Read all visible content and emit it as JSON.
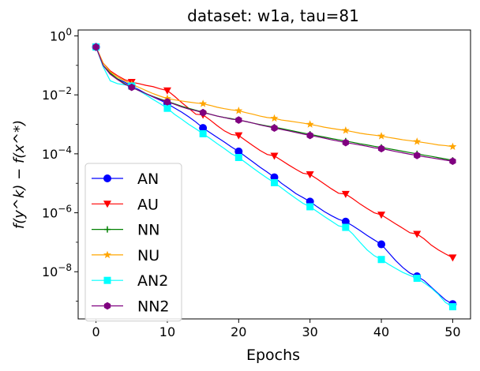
{
  "chart_data": {
    "type": "line",
    "title": "dataset: w1a, tau=81",
    "xlabel": "Epochs",
    "ylabel": "f(y^k) − f(x^*)",
    "yscale": "log",
    "xlim": [
      -2.5,
      52.5
    ],
    "ylim_log10": [
      -9.6,
      0.2
    ],
    "xticks": [
      0,
      10,
      20,
      30,
      40,
      50
    ],
    "xtick_labels": [
      "0",
      "10",
      "20",
      "30",
      "40",
      "50"
    ],
    "yticks_log10": [
      0,
      -2,
      -4,
      -6,
      -8
    ],
    "ytick_labels": [
      "10",
      "10",
      "10",
      "10",
      "10"
    ],
    "ytick_exponents": [
      "0",
      "−2",
      "−4",
      "−6",
      "−8"
    ],
    "grid": false,
    "legend_position": "lower-left",
    "series": [
      {
        "name": "AN",
        "color": "#0000ff",
        "marker": "circle",
        "x": [
          0,
          1,
          2,
          3,
          4,
          5,
          6,
          7,
          8,
          9,
          10,
          11,
          12,
          13,
          14,
          15,
          16,
          17,
          18,
          19,
          20,
          21,
          22,
          23,
          24,
          25,
          26,
          27,
          28,
          29,
          30,
          31,
          32,
          33,
          34,
          35,
          36,
          37,
          38,
          39,
          40,
          41,
          42,
          43,
          44,
          45,
          46,
          47,
          48,
          49,
          50
        ],
        "y": [
          0.42,
          0.1,
          0.05,
          0.035,
          0.027,
          0.02,
          0.015,
          0.011,
          0.0085,
          0.0066,
          0.005,
          0.0036,
          0.0026,
          0.0018,
          0.0012,
          0.00075,
          0.00052,
          0.00036,
          0.00025,
          0.00017,
          0.00012,
          8e-05,
          5.3e-05,
          3.5e-05,
          2.4e-05,
          1.6e-05,
          1e-05,
          6.8e-06,
          4.5e-06,
          3.3e-06,
          2.4e-06,
          1.6e-06,
          1.1e-06,
          8e-07,
          6e-07,
          5e-07,
          3.6e-07,
          2.5e-07,
          1.7e-07,
          1.2e-07,
          8.5e-08,
          4.5e-08,
          2.4e-08,
          1.4e-08,
          9e-09,
          7e-09,
          5e-09,
          3e-09,
          1.8e-09,
          1.1e-09,
          8e-10
        ]
      },
      {
        "name": "AU",
        "color": "#ff0000",
        "marker": "triangle-down",
        "x": [
          0,
          1,
          2,
          3,
          4,
          5,
          6,
          7,
          8,
          9,
          10,
          11,
          12,
          13,
          14,
          15,
          16,
          17,
          18,
          19,
          20,
          21,
          22,
          23,
          24,
          25,
          26,
          27,
          28,
          29,
          30,
          31,
          32,
          33,
          34,
          35,
          36,
          37,
          38,
          39,
          40,
          41,
          42,
          43,
          44,
          45,
          46,
          47,
          48,
          49,
          50
        ],
        "y": [
          0.42,
          0.12,
          0.065,
          0.045,
          0.033,
          0.027,
          0.024,
          0.021,
          0.019,
          0.016,
          0.014,
          0.009,
          0.0055,
          0.0035,
          0.0022,
          0.0021,
          0.0014,
          0.0009,
          0.0006,
          0.00045,
          0.00042,
          0.00028,
          0.00019,
          0.00013,
          9.5e-05,
          8.5e-05,
          6e-05,
          4.2e-05,
          3e-05,
          2.2e-05,
          2e-05,
          1.4e-05,
          9.5e-06,
          6.5e-06,
          4.6e-06,
          4.3e-06,
          3e-06,
          2e-06,
          1.4e-06,
          1e-06,
          8.5e-07,
          6e-07,
          4.2e-07,
          3e-07,
          2.1e-07,
          1.9e-07,
          1.3e-07,
          8e-08,
          5.5e-08,
          4e-08,
          3e-08
        ]
      },
      {
        "name": "NN",
        "color": "#008000",
        "marker": "plus",
        "x": [
          0,
          1,
          2,
          3,
          4,
          5,
          6,
          7,
          8,
          9,
          10,
          11,
          12,
          13,
          14,
          15,
          16,
          17,
          18,
          19,
          20,
          21,
          22,
          23,
          24,
          25,
          26,
          27,
          28,
          29,
          30,
          31,
          32,
          33,
          34,
          35,
          36,
          37,
          38,
          39,
          40,
          41,
          42,
          43,
          44,
          45,
          46,
          47,
          48,
          49,
          50
        ],
        "y": [
          0.42,
          0.1,
          0.055,
          0.035,
          0.024,
          0.018,
          0.014,
          0.011,
          0.0088,
          0.0072,
          0.006,
          0.005,
          0.0041,
          0.0035,
          0.003,
          0.0026,
          0.0022,
          0.0019,
          0.0017,
          0.00155,
          0.0014,
          0.00125,
          0.0011,
          0.00098,
          0.00088,
          0.0008,
          0.00072,
          0.00064,
          0.00057,
          0.00051,
          0.00046,
          0.00041,
          0.00037,
          0.00033,
          0.0003,
          0.00027,
          0.000245,
          0.00022,
          0.0002,
          0.00018,
          0.000165,
          0.00015,
          0.000135,
          0.000122,
          0.00011,
          0.0001,
          9e-05,
          8.2e-05,
          7.4e-05,
          6.7e-05,
          6e-05
        ]
      },
      {
        "name": "NU",
        "color": "#ffa500",
        "marker": "star",
        "x": [
          0,
          1,
          2,
          3,
          4,
          5,
          6,
          7,
          8,
          9,
          10,
          11,
          12,
          13,
          14,
          15,
          16,
          17,
          18,
          19,
          20,
          21,
          22,
          23,
          24,
          25,
          26,
          27,
          28,
          29,
          30,
          31,
          32,
          33,
          34,
          35,
          36,
          37,
          38,
          39,
          40,
          41,
          42,
          43,
          44,
          45,
          46,
          47,
          48,
          49,
          50
        ],
        "y": [
          0.42,
          0.12,
          0.06,
          0.04,
          0.03,
          0.023,
          0.018,
          0.014,
          0.011,
          0.009,
          0.0075,
          0.0068,
          0.0062,
          0.0057,
          0.0053,
          0.005,
          0.0044,
          0.0038,
          0.0034,
          0.0031,
          0.0029,
          0.0025,
          0.0022,
          0.0019,
          0.0017,
          0.0016,
          0.0014,
          0.0013,
          0.0012,
          0.0011,
          0.001,
          0.0009,
          0.0008,
          0.00073,
          0.00067,
          0.00062,
          0.00056,
          0.0005,
          0.00046,
          0.00043,
          0.0004,
          0.00036,
          0.00033,
          0.0003,
          0.00028,
          0.00026,
          0.00024,
          0.00022,
          0.0002,
          0.00019,
          0.000175
        ]
      },
      {
        "name": "AN2",
        "color": "#00ffff",
        "marker": "square",
        "x": [
          0,
          1,
          2,
          3,
          4,
          5,
          6,
          7,
          8,
          9,
          10,
          11,
          12,
          13,
          14,
          15,
          16,
          17,
          18,
          19,
          20,
          21,
          22,
          23,
          24,
          25,
          26,
          27,
          28,
          29,
          30,
          31,
          32,
          33,
          34,
          35,
          36,
          37,
          38,
          39,
          40,
          41,
          42,
          43,
          44,
          45,
          46,
          47,
          48,
          49,
          50
        ],
        "y": [
          0.42,
          0.09,
          0.03,
          0.024,
          0.022,
          0.02,
          0.014,
          0.01,
          0.007,
          0.005,
          0.0035,
          0.0022,
          0.0015,
          0.001,
          0.0007,
          0.00048,
          0.00033,
          0.00022,
          0.00015,
          0.0001,
          7.5e-05,
          5e-05,
          3.3e-05,
          2.2e-05,
          1.5e-05,
          1.05e-05,
          7e-06,
          4.6e-06,
          3.1e-06,
          2.1e-06,
          1.6e-06,
          1.1e-06,
          7.5e-07,
          5.2e-07,
          3.6e-07,
          3.2e-07,
          1.9e-07,
          1e-07,
          5.5e-08,
          3.5e-08,
          2.6e-08,
          1.8e-08,
          1.3e-08,
          9.5e-09,
          7.5e-09,
          6e-09,
          4.2e-09,
          2.8e-09,
          1.7e-09,
          9e-10,
          6.5e-10
        ]
      },
      {
        "name": "NN2",
        "color": "#800080",
        "marker": "hexagon",
        "x": [
          0,
          1,
          2,
          3,
          4,
          5,
          6,
          7,
          8,
          9,
          10,
          11,
          12,
          13,
          14,
          15,
          16,
          17,
          18,
          19,
          20,
          21,
          22,
          23,
          24,
          25,
          26,
          27,
          28,
          29,
          30,
          31,
          32,
          33,
          34,
          35,
          36,
          37,
          38,
          39,
          40,
          41,
          42,
          43,
          44,
          45,
          46,
          47,
          48,
          49,
          50
        ],
        "y": [
          0.42,
          0.1,
          0.05,
          0.033,
          0.023,
          0.018,
          0.014,
          0.011,
          0.0086,
          0.0069,
          0.0058,
          0.0048,
          0.0039,
          0.0033,
          0.0029,
          0.0025,
          0.0022,
          0.0019,
          0.0017,
          0.0015,
          0.0014,
          0.00125,
          0.0011,
          0.00095,
          0.00085,
          0.00075,
          0.00067,
          0.0006,
          0.00053,
          0.00047,
          0.00042,
          0.00038,
          0.00034,
          0.0003,
          0.00027,
          0.00024,
          0.00022,
          0.0002,
          0.00018,
          0.00016,
          0.00015,
          0.000135,
          0.00012,
          0.000108,
          9.7e-05,
          8.8e-05,
          8e-05,
          7.3e-05,
          6.7e-05,
          6.1e-05,
          5.6e-05
        ]
      }
    ]
  }
}
